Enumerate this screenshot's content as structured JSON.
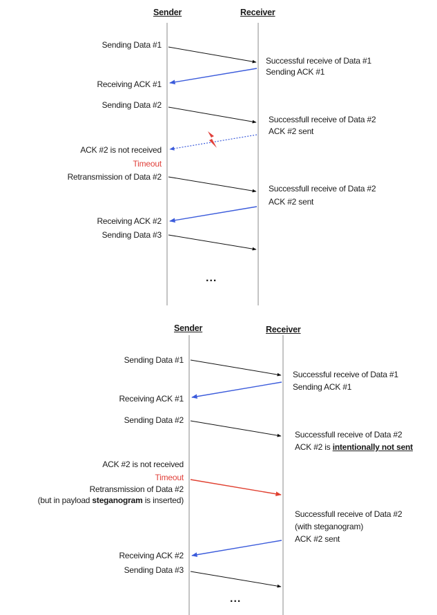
{
  "top": {
    "sender_label": "Sender",
    "receiver_label": "Receiver",
    "s1": "Sending Data #1",
    "r1a": "Successful receive of Data #1",
    "r1b": "Sending ACK #1",
    "s2": "Receiving ACK #1",
    "s3": "Sending Data #2",
    "r2a": "Successfull receive of Data #2",
    "r2b": "ACK #2 sent",
    "s4": "ACK #2 is not received",
    "timeout": "Timeout",
    "s5": "Retransmission of Data #2",
    "r3a": "Successfull receive of Data #2",
    "r3b": "ACK #2 sent",
    "s6": "Receiving ACK #2",
    "s7": "Sending Data #3",
    "ellipsis": "..."
  },
  "bottom": {
    "sender_label": "Sender",
    "receiver_label": "Receiver",
    "s1": "Sending Data #1",
    "r1a": "Successful receive of Data #1",
    "r1b": "Sending ACK #1",
    "s2": "Receiving ACK #1",
    "s3": "Sending Data #2",
    "r2a": "Successfull receive of Data #2",
    "r2b_prefix": "ACK #2 is ",
    "r2b_bold": "intentionally not sent",
    "s4": "ACK #2 is not received",
    "timeout": "Timeout",
    "s5": "Retransmission of Data #2",
    "s5b_prefix": "(but in payload ",
    "s5b_bold": "steganogram",
    "s5b_suffix": " is inserted)",
    "r3a": "Successfull receive of Data #2",
    "r3b": "(with steganogram)",
    "r3c": "ACK #2 sent",
    "s6": "Receiving ACK #2",
    "s7": "Sending Data #3",
    "ellipsis": "..."
  },
  "colors": {
    "data_arrow": "#111111",
    "ack_arrow": "#3b5bdb",
    "timeout_text": "#e0403a",
    "steg_arrow": "#e04030",
    "lightning": "#e0403a"
  }
}
